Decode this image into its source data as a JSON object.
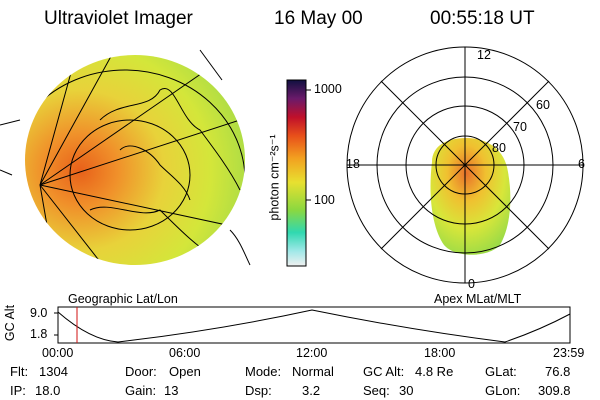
{
  "header": {
    "title": "Ultraviolet Imager",
    "date": "16 May 00",
    "time": "00:55:18 UT"
  },
  "colorbar": {
    "unit_label": "photon cm⁻²s⁻¹",
    "ticks": [
      "1000",
      "100"
    ]
  },
  "polar_plot": {
    "mlt_labels": {
      "top": "12",
      "left": "18",
      "right": "6",
      "bottom": "0"
    },
    "lat_labels": [
      "60",
      "70",
      "80"
    ]
  },
  "panels": {
    "left_label": "Geographic Lat/Lon",
    "right_label": "Apex MLat/MLT"
  },
  "altitude_plot": {
    "y_axis_label": "GC Alt",
    "y_ticks": [
      "9.0",
      "1.8"
    ],
    "x_ticks": [
      "00:00",
      "06:00",
      "12:00",
      "18:00",
      "23:59"
    ]
  },
  "info": {
    "row1": [
      {
        "label": "Flt:",
        "value": "1304"
      },
      {
        "label": "Door:",
        "value": "Open"
      },
      {
        "label": "Mode:",
        "value": "Normal"
      },
      {
        "label": "GC Alt:",
        "value": "4.8 Re"
      },
      {
        "label": "GLat:",
        "value": "76.8"
      }
    ],
    "row2": [
      {
        "label": "IP:",
        "value": "18.0"
      },
      {
        "label": "Gain:",
        "value": "13"
      },
      {
        "label": "Dsp:",
        "value": "3.2"
      },
      {
        "label": "Seq:",
        "value": "30"
      },
      {
        "label": "GLon:",
        "value": "309.8"
      }
    ]
  }
}
